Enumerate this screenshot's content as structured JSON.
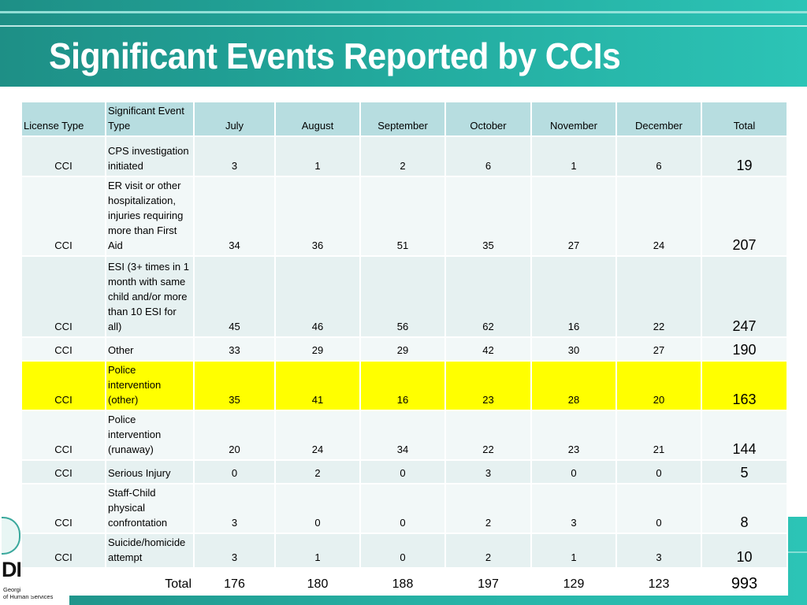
{
  "title": "Significant Events Reported by CCIs",
  "logo": {
    "text": "DHS",
    "subtitle": "Georgia Department of Human Services"
  },
  "table": {
    "headers": [
      "License Type",
      "Significant Event Type",
      "July",
      "August",
      "September",
      "October",
      "November",
      "December",
      "Total"
    ],
    "rows": [
      {
        "license": "CCI",
        "event": "CPS investigation initiated",
        "values": [
          "3",
          "1",
          "2",
          "6",
          "1",
          "6"
        ],
        "total": "19"
      },
      {
        "license": "CCI",
        "event": "ER visit or other hospitalization, injuries requiring more than First Aid",
        "values": [
          "34",
          "36",
          "51",
          "35",
          "27",
          "24"
        ],
        "total": "207"
      },
      {
        "license": "CCI",
        "event": "ESI (3+ times in 1 month with same child and/or more than 10 ESI for all)",
        "values": [
          "45",
          "46",
          "56",
          "62",
          "16",
          "22"
        ],
        "total": "247"
      },
      {
        "license": "CCI",
        "event": "Other",
        "values": [
          "33",
          "29",
          "29",
          "42",
          "30",
          "27"
        ],
        "total": "190"
      },
      {
        "license": "CCI",
        "event": "Police intervention (other)",
        "values": [
          "35",
          "41",
          "16",
          "23",
          "28",
          "20"
        ],
        "total": "163",
        "highlight": "#ffff00"
      },
      {
        "license": "CCI",
        "event": "Police intervention (runaway)",
        "values": [
          "20",
          "24",
          "34",
          "22",
          "23",
          "21"
        ],
        "total": "144"
      },
      {
        "license": "CCI",
        "event": "Serious Injury",
        "values": [
          "0",
          "2",
          "0",
          "3",
          "0",
          "0"
        ],
        "total": "5"
      },
      {
        "license": "CCI",
        "event": "Staff-Child physical confrontation",
        "values": [
          "3",
          "0",
          "0",
          "2",
          "3",
          "0"
        ],
        "total": "8"
      },
      {
        "license": "CCI",
        "event": "Suicide/homicide attempt",
        "values": [
          "3",
          "1",
          "0",
          "2",
          "1",
          "3"
        ],
        "total": "10"
      }
    ],
    "total_row": {
      "label": "Total",
      "values": [
        "176",
        "180",
        "188",
        "197",
        "129",
        "123"
      ],
      "grand_total": "993"
    }
  },
  "colors": {
    "teal": "#22a89c",
    "header_fill": "#b7dde0",
    "highlight": "#ffff00"
  }
}
